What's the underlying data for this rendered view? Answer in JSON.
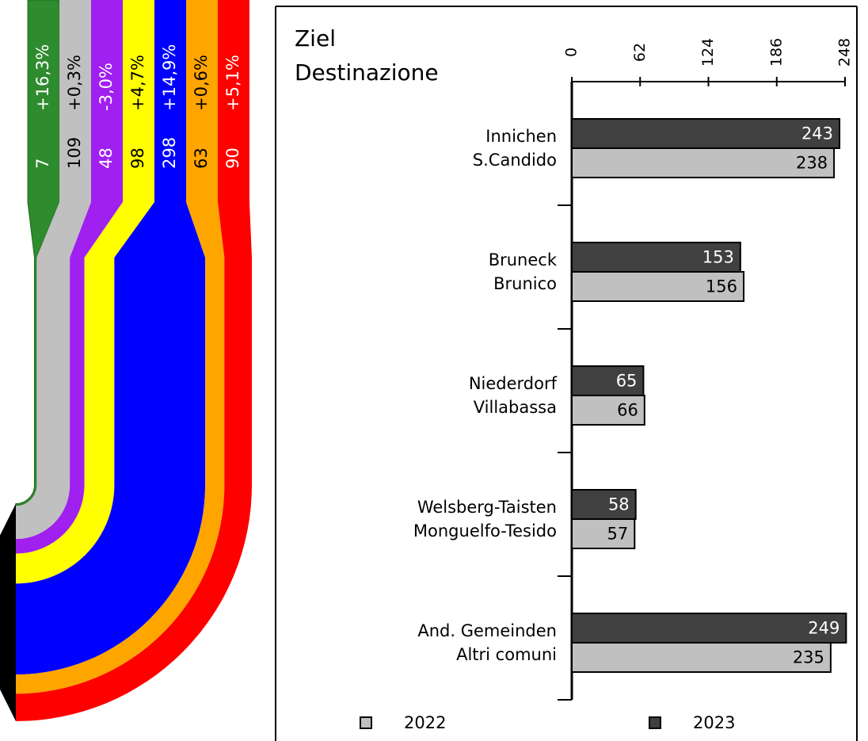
{
  "chart_data": [
    {
      "type": "flow",
      "values": [
        7,
        109,
        48,
        98,
        298,
        63,
        90
      ],
      "changes": [
        {
          "value": 16.3,
          "label": "+16,3%"
        },
        {
          "value": 0.3,
          "label": "+0,3%"
        },
        {
          "value": -3.0,
          "label": "-3,0%"
        },
        {
          "value": 4.7,
          "label": "+4,7%"
        },
        {
          "value": 14.9,
          "label": "+14,9%"
        },
        {
          "value": 0.6,
          "label": "+0,6%"
        },
        {
          "value": 5.1,
          "label": "+5,1%"
        }
      ],
      "colors": [
        "#2e8b2e",
        "#c0c0c0",
        "#a020f0",
        "#ffff00",
        "#0000ff",
        "#ffa500",
        "#ff0000"
      ]
    },
    {
      "type": "barh",
      "title": [
        "Ziel",
        "Destinazione"
      ],
      "categories": [
        [
          "Innichen",
          "S.Candido"
        ],
        [
          "Bruneck",
          "Brunico"
        ],
        [
          "Niederdorf",
          "Villabassa"
        ],
        [
          "Welsberg-Taisten",
          "Monguelfo-Tesido"
        ],
        [
          "And. Gemeinden",
          "Altri comuni"
        ]
      ],
      "series": [
        {
          "name": "2022",
          "color": "#c0c0c0",
          "values": [
            238,
            156,
            66,
            57,
            235
          ]
        },
        {
          "name": "2023",
          "color": "#404040",
          "values": [
            243,
            153,
            65,
            58,
            249
          ]
        }
      ],
      "xlim": [
        0,
        248
      ],
      "xticks": [
        0,
        62,
        124,
        186,
        248
      ]
    }
  ]
}
